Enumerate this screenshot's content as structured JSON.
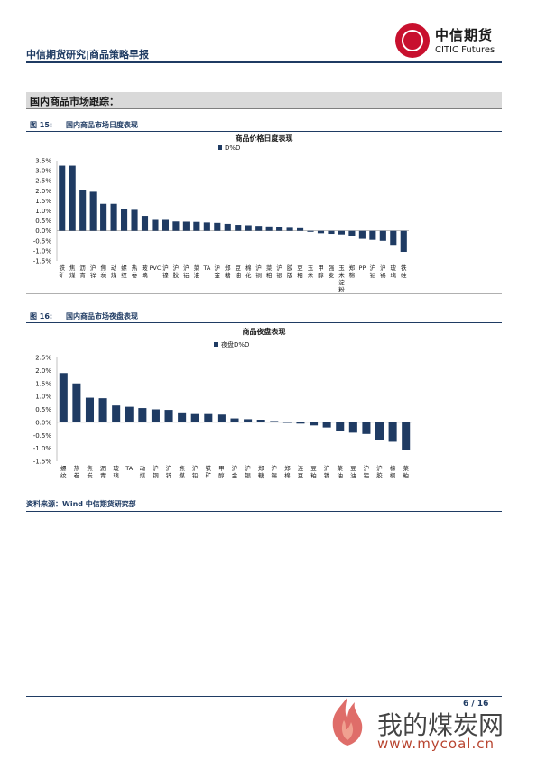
{
  "header": {
    "title": "中信期货研究|商品策略早报",
    "logo_cn": "中信期货",
    "logo_en": "CITIC Futures"
  },
  "section": {
    "title": "国内商品市场跟踪："
  },
  "figure1": {
    "number": "图 15:",
    "caption": "国内商品市场日度表现",
    "chart_title": "商品价格日度表现",
    "legend": "D%D"
  },
  "figure2": {
    "number": "图 16:",
    "caption": "国内商品市场夜盘表现",
    "chart_title": "商品夜盘表现",
    "legend": "夜盘D%D"
  },
  "source": "资料来源：Wind  中信期货研究部",
  "page": "6 / 16",
  "watermark": {
    "text": "我的煤炭网",
    "url": "www.mycoal.cn"
  },
  "colors": {
    "bar": "#1f3b63",
    "accent": "#c8102e"
  },
  "chart_data": [
    {
      "type": "bar",
      "title": "商品价格日度表现",
      "legend": "D%D",
      "ylim": [
        -1.5,
        3.5
      ],
      "yticks": [
        "3.5%",
        "3.0%",
        "2.5%",
        "2.0%",
        "1.5%",
        "1.0%",
        "0.5%",
        "0.0%",
        "-0.5%",
        "-1.0%",
        "-1.5%"
      ],
      "categories": [
        "铁矿",
        "焦煤",
        "沥青",
        "沪锌",
        "焦炭",
        "动煤",
        "螺纹",
        "热卷",
        "玻璃",
        "PVC",
        "沪镍",
        "沪胶",
        "沪铝",
        "菜油",
        "TA",
        "沪金",
        "郑糖",
        "豆油",
        "棉花",
        "沪铜",
        "菜粕",
        "沪银",
        "胶版",
        "豆粕",
        "玉米",
        "甲醇",
        "强麦",
        "玉米淀粉",
        "郑棉",
        "PP",
        "沪铅",
        "沪锡",
        "玻璃",
        "铁硅"
      ],
      "values": [
        3.25,
        3.25,
        2.05,
        1.95,
        1.35,
        1.35,
        1.1,
        1.05,
        0.75,
        0.55,
        0.55,
        0.47,
        0.46,
        0.45,
        0.42,
        0.4,
        0.35,
        0.3,
        0.28,
        0.25,
        0.22,
        0.2,
        0.15,
        0.13,
        -0.05,
        -0.12,
        -0.15,
        -0.18,
        -0.28,
        -0.4,
        -0.45,
        -0.5,
        -0.7,
        -1.05
      ]
    },
    {
      "type": "bar",
      "title": "商品夜盘表现",
      "legend": "夜盘D%D",
      "ylim": [
        -1.5,
        2.5
      ],
      "yticks": [
        "2.5%",
        "2.0%",
        "1.5%",
        "1.0%",
        "0.5%",
        "0.0%",
        "-0.5%",
        "-1.0%",
        "-1.5%"
      ],
      "categories": [
        "螺纹",
        "热卷",
        "焦炭",
        "沥青",
        "玻璃",
        "TA",
        "动煤",
        "沪铜",
        "沪锌",
        "焦煤",
        "沪铅",
        "铁矿",
        "甲醇",
        "沪金",
        "沪银",
        "郑糖",
        "沪锡",
        "郑棉",
        "连豆",
        "豆粕",
        "沪镍",
        "菜油",
        "豆油",
        "沪铝",
        "沪胶",
        "棕榈",
        "菜粕"
      ],
      "values": [
        1.9,
        1.5,
        0.95,
        0.93,
        0.65,
        0.6,
        0.55,
        0.5,
        0.48,
        0.35,
        0.32,
        0.32,
        0.3,
        0.15,
        0.12,
        0.1,
        0.05,
        0.0,
        -0.05,
        -0.12,
        -0.2,
        -0.35,
        -0.4,
        -0.45,
        -0.7,
        -0.75,
        -1.05
      ]
    }
  ]
}
